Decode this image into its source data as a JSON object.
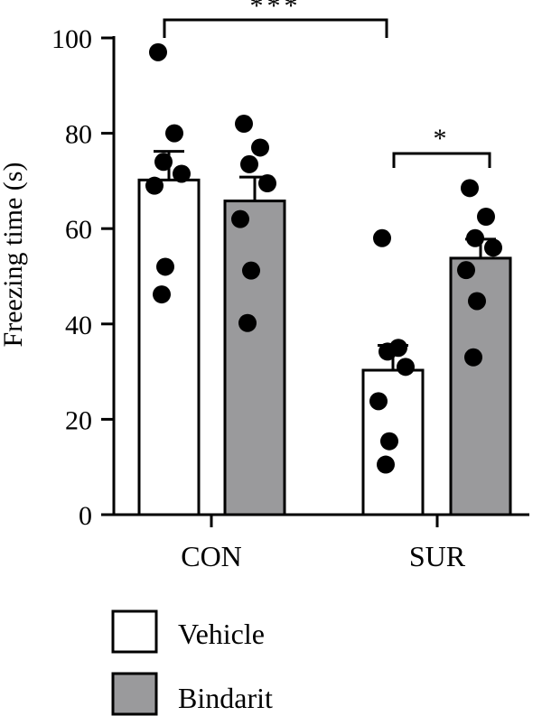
{
  "chart_data": {
    "type": "bar",
    "ylabel": "Freezing time (s)",
    "xlabel": "",
    "ylim": [
      0,
      100
    ],
    "yticks": [
      0,
      20,
      40,
      60,
      80,
      100
    ],
    "categories": [
      "CON",
      "SUR"
    ],
    "series": [
      {
        "name": "Vehicle",
        "color": "#ffffff",
        "values": [
          70.2,
          30.3
        ],
        "errors": [
          6.0,
          5.2
        ],
        "points": [
          [
            97,
            80,
            74,
            71.5,
            69,
            52,
            46.2
          ],
          [
            58,
            35,
            34.2,
            31,
            23.8,
            15.4,
            10.5
          ]
        ]
      },
      {
        "name": "Bindarit",
        "color": "#9a9a9c",
        "values": [
          65.8,
          53.8
        ],
        "errors": [
          5.0,
          4.0
        ],
        "points": [
          [
            82,
            77,
            73.5,
            69.5,
            62,
            51.2,
            40.2
          ],
          [
            68.5,
            62.5,
            58,
            56,
            51.3,
            44.8,
            33
          ]
        ]
      }
    ],
    "significance": [
      {
        "label": "***",
        "from": "CON Vehicle",
        "to": "SUR Vehicle"
      },
      {
        "label": "*",
        "from": "SUR Vehicle",
        "to": "SUR Bindarit"
      }
    ],
    "legend": {
      "position": "bottom-left",
      "entries": [
        "Vehicle",
        "Bindarit"
      ]
    },
    "grid": false
  }
}
